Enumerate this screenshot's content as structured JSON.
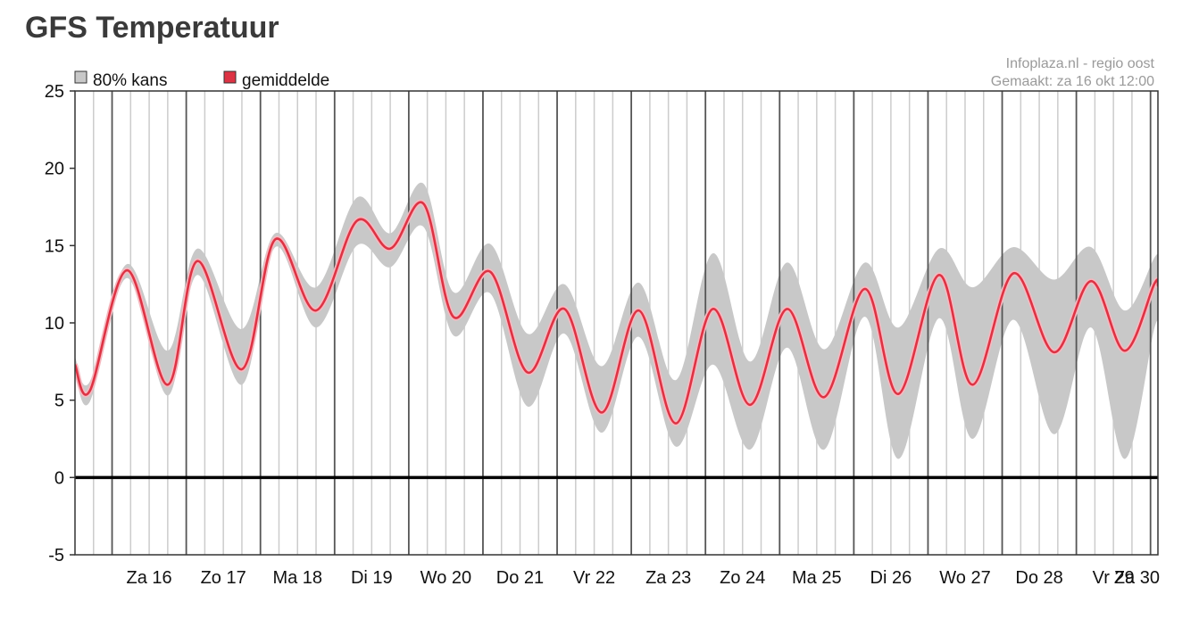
{
  "title": "GFS Temperatuur",
  "source": {
    "line1": "Infoplaza.nl - regio oost",
    "line2": "Gemaakt: za 16 okt 12:00"
  },
  "colors": {
    "band": "#c8c8c8",
    "mean": "#dd3344",
    "zero_line": "#000000",
    "grid_major": "#555555",
    "grid_minor": "#cccccc"
  },
  "chart_data": {
    "type": "area",
    "x_unit": "days since Za 16 00:00",
    "xlim": [
      -0.5,
      14.1
    ],
    "ylim": [
      -5,
      25
    ],
    "yticks": [
      -5,
      0,
      5,
      10,
      15,
      20,
      25
    ],
    "grid": true,
    "legend_placement": "top-left",
    "days": [
      "Za 16",
      "Zo 17",
      "Ma 18",
      "Di 19",
      "Wo 20",
      "Do 21",
      "Vr 22",
      "Za 23",
      "Zo 24",
      "Ma 25",
      "Di 26",
      "Wo 27",
      "Do 28",
      "Vr 29",
      "Za 30"
    ],
    "series": [
      {
        "name": "gemiddelde",
        "points": [
          [
            -0.5,
            7.3
          ],
          [
            -0.3,
            5.6
          ],
          [
            0.2,
            13.4
          ],
          [
            0.75,
            6.0
          ],
          [
            1.15,
            14.0
          ],
          [
            1.75,
            7.0
          ],
          [
            2.2,
            15.4
          ],
          [
            2.75,
            10.8
          ],
          [
            3.3,
            16.6
          ],
          [
            3.75,
            14.8
          ],
          [
            4.2,
            17.7
          ],
          [
            4.6,
            10.4
          ],
          [
            5.1,
            13.3
          ],
          [
            5.6,
            6.8
          ],
          [
            6.1,
            10.9
          ],
          [
            6.6,
            4.2
          ],
          [
            7.1,
            10.8
          ],
          [
            7.6,
            3.5
          ],
          [
            8.1,
            10.9
          ],
          [
            8.6,
            4.7
          ],
          [
            9.1,
            10.9
          ],
          [
            9.6,
            5.2
          ],
          [
            10.15,
            12.2
          ],
          [
            10.6,
            5.4
          ],
          [
            11.15,
            13.1
          ],
          [
            11.6,
            6.0
          ],
          [
            12.15,
            13.2
          ],
          [
            12.7,
            8.1
          ],
          [
            13.2,
            12.7
          ],
          [
            13.65,
            8.2
          ],
          [
            14.05,
            12.5
          ],
          [
            14.1,
            12.4
          ]
        ]
      },
      {
        "name": "80% kans",
        "upper": [
          [
            -0.5,
            7.8
          ],
          [
            -0.3,
            6.2
          ],
          [
            0.2,
            13.8
          ],
          [
            0.75,
            8.2
          ],
          [
            1.15,
            14.8
          ],
          [
            1.75,
            9.6
          ],
          [
            2.2,
            15.8
          ],
          [
            2.75,
            12.3
          ],
          [
            3.3,
            18.1
          ],
          [
            3.75,
            15.8
          ],
          [
            4.2,
            19.0
          ],
          [
            4.6,
            12.0
          ],
          [
            5.1,
            15.1
          ],
          [
            5.6,
            9.3
          ],
          [
            6.1,
            12.5
          ],
          [
            6.6,
            7.2
          ],
          [
            7.1,
            12.6
          ],
          [
            7.6,
            6.3
          ],
          [
            8.1,
            14.5
          ],
          [
            8.6,
            7.5
          ],
          [
            9.1,
            13.9
          ],
          [
            9.6,
            8.3
          ],
          [
            10.15,
            13.9
          ],
          [
            10.6,
            9.7
          ],
          [
            11.15,
            14.8
          ],
          [
            11.6,
            12.3
          ],
          [
            12.15,
            14.9
          ],
          [
            12.7,
            12.8
          ],
          [
            13.2,
            14.9
          ],
          [
            13.65,
            10.8
          ],
          [
            14.05,
            14.2
          ],
          [
            14.1,
            14.2
          ]
        ],
        "lower": [
          [
            -0.5,
            6.8
          ],
          [
            -0.3,
            4.9
          ],
          [
            0.2,
            12.9
          ],
          [
            0.75,
            5.3
          ],
          [
            1.15,
            13.1
          ],
          [
            1.75,
            6.0
          ],
          [
            2.2,
            14.9
          ],
          [
            2.75,
            9.7
          ],
          [
            3.3,
            15.0
          ],
          [
            3.75,
            13.6
          ],
          [
            4.2,
            16.2
          ],
          [
            4.6,
            9.2
          ],
          [
            5.1,
            11.9
          ],
          [
            5.6,
            4.6
          ],
          [
            6.1,
            9.3
          ],
          [
            6.6,
            2.9
          ],
          [
            7.1,
            9.1
          ],
          [
            7.6,
            2.0
          ],
          [
            8.1,
            7.3
          ],
          [
            8.6,
            1.8
          ],
          [
            9.1,
            8.4
          ],
          [
            9.6,
            1.8
          ],
          [
            10.15,
            10.4
          ],
          [
            10.6,
            1.2
          ],
          [
            11.15,
            10.3
          ],
          [
            11.6,
            2.5
          ],
          [
            12.15,
            10.2
          ],
          [
            12.7,
            2.8
          ],
          [
            13.2,
            9.7
          ],
          [
            13.65,
            1.2
          ],
          [
            14.05,
            9.6
          ],
          [
            14.1,
            9.3
          ]
        ]
      }
    ]
  }
}
